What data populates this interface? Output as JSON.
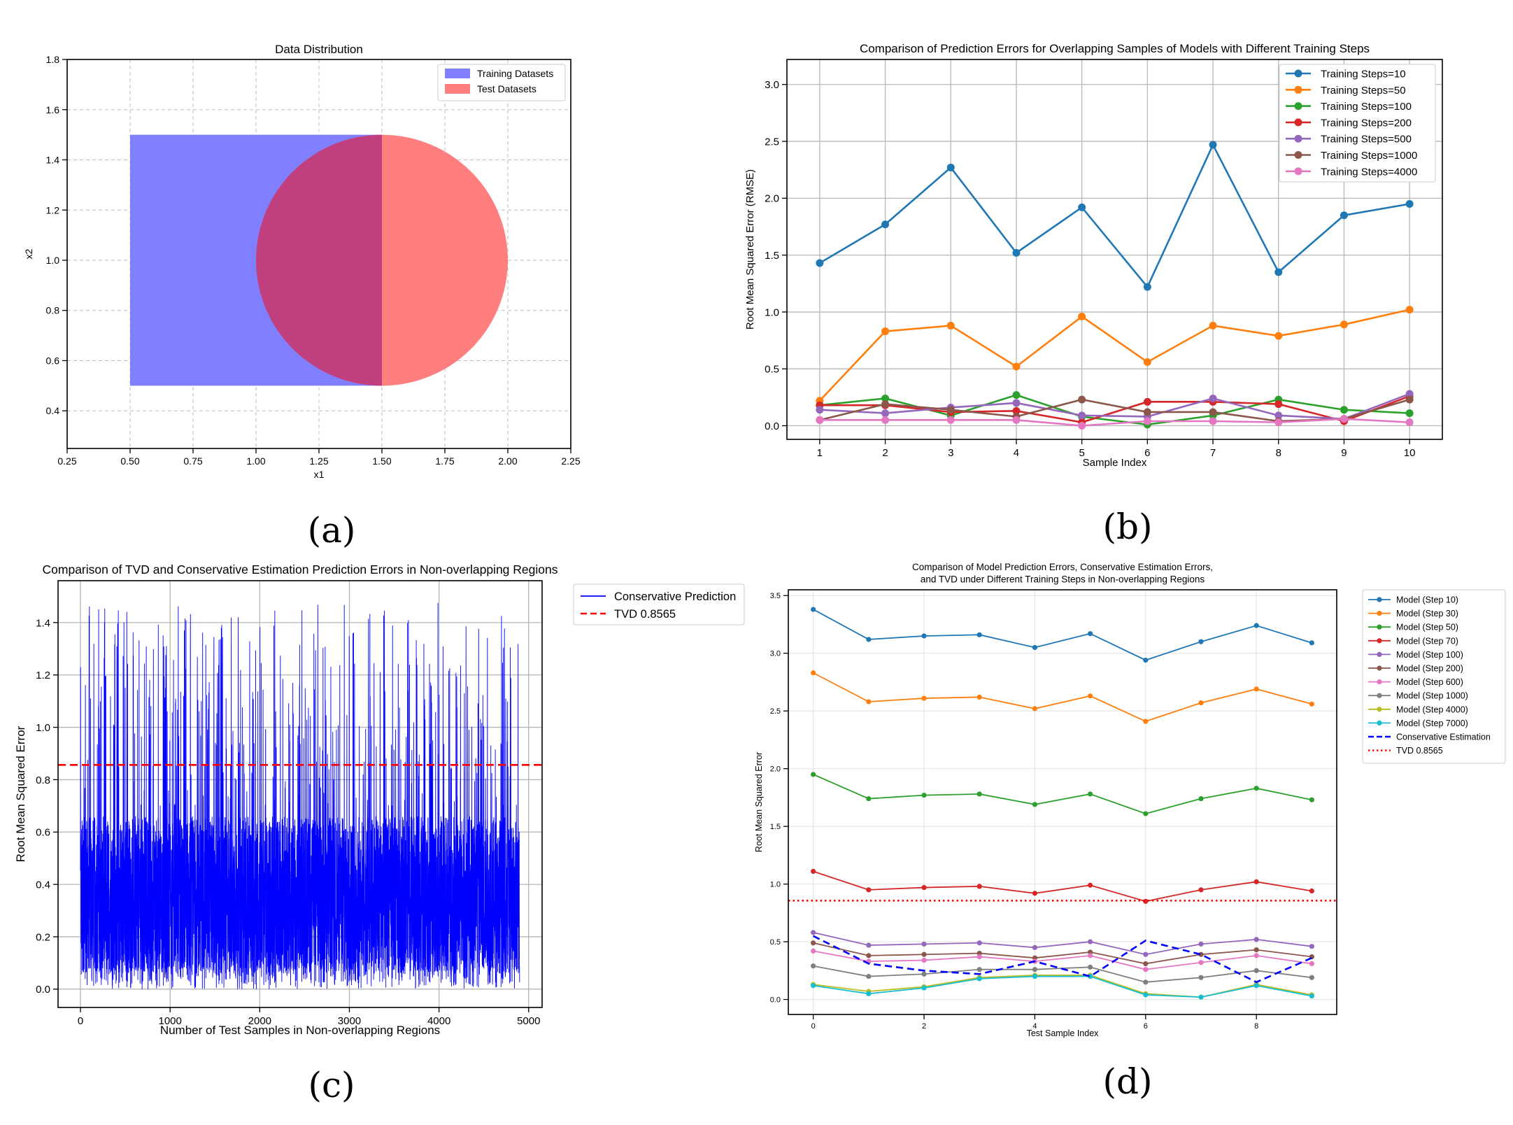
{
  "captions": [
    "(a)",
    "(b)",
    "(c)",
    "(d)"
  ],
  "chart_data": [
    {
      "id": "a",
      "type": "area",
      "title": "Data Distribution",
      "xlabel": "x1",
      "ylabel": "x2",
      "xlim": [
        0.25,
        2.25
      ],
      "ylim": [
        0.25,
        1.8
      ],
      "xticks": [
        0.25,
        0.5,
        0.75,
        1.0,
        1.25,
        1.5,
        1.75,
        2.0,
        2.25
      ],
      "yticks": [
        0.4,
        0.6,
        0.8,
        1.0,
        1.2,
        1.4,
        1.6,
        1.8
      ],
      "grid": true,
      "legend_position": "top-right",
      "series": [
        {
          "name": "Training Datasets",
          "shape": "rectangle",
          "x": [
            0.5,
            1.5
          ],
          "y": [
            0.5,
            1.5
          ],
          "color": "#7f7fff"
        },
        {
          "name": "Test Datasets",
          "shape": "circle",
          "center": [
            1.5,
            1.0
          ],
          "radius": 0.5,
          "color": "#ff7f7f"
        }
      ],
      "overlap_color": "#bf3f7f"
    },
    {
      "id": "b",
      "type": "line",
      "title": "Comparison of Prediction Errors for Overlapping Samples of Models with Different Training Steps",
      "xlabel": "Sample Index",
      "ylabel": "Root Mean Squared Error (RMSE)",
      "xlim": [
        0.5,
        10.5
      ],
      "ylim": [
        -0.12,
        3.22
      ],
      "xticks": [
        1,
        2,
        3,
        4,
        5,
        6,
        7,
        8,
        9,
        10
      ],
      "yticks": [
        0.0,
        0.5,
        1.0,
        1.5,
        2.0,
        2.5,
        3.0
      ],
      "grid": true,
      "legend_position": "top-right",
      "x": [
        1,
        2,
        3,
        4,
        5,
        6,
        7,
        8,
        9,
        10
      ],
      "series": [
        {
          "name": "Training Steps=10",
          "color": "#1f77b4",
          "values": [
            1.43,
            1.77,
            2.27,
            1.52,
            1.92,
            1.22,
            2.47,
            1.35,
            1.85,
            1.95
          ]
        },
        {
          "name": "Training Steps=50",
          "color": "#ff7f0e",
          "values": [
            0.22,
            0.83,
            0.88,
            0.52,
            0.96,
            0.56,
            0.88,
            0.79,
            0.89,
            1.02
          ]
        },
        {
          "name": "Training Steps=100",
          "color": "#2ca02c",
          "values": [
            0.18,
            0.24,
            0.09,
            0.27,
            0.08,
            0.01,
            0.09,
            0.23,
            0.14,
            0.11
          ]
        },
        {
          "name": "Training Steps=200",
          "color": "#d62728",
          "values": [
            0.18,
            0.18,
            0.12,
            0.13,
            0.03,
            0.21,
            0.21,
            0.19,
            0.04,
            0.26
          ]
        },
        {
          "name": "Training Steps=500",
          "color": "#9467bd",
          "values": [
            0.14,
            0.11,
            0.16,
            0.2,
            0.09,
            0.08,
            0.24,
            0.09,
            0.06,
            0.28
          ]
        },
        {
          "name": "Training Steps=1000",
          "color": "#8c564b",
          "values": [
            0.05,
            0.19,
            0.14,
            0.08,
            0.23,
            0.12,
            0.12,
            0.04,
            0.06,
            0.23
          ]
        },
        {
          "name": "Training Steps=4000",
          "color": "#e377c2",
          "values": [
            0.05,
            0.05,
            0.05,
            0.05,
            0.0,
            0.04,
            0.04,
            0.03,
            0.06,
            0.03
          ]
        }
      ]
    },
    {
      "id": "c",
      "type": "line",
      "title": "Comparison of TVD and Conservative Estimation Prediction Errors in Non-overlapping Regions",
      "xlabel": "Number of Test Samples in Non-overlapping Regions",
      "ylabel": "Root Mean Squared Error",
      "xlim": [
        -250,
        5150
      ],
      "ylim": [
        -0.07,
        1.56
      ],
      "xticks": [
        0,
        1000,
        2000,
        3000,
        4000,
        5000
      ],
      "yticks": [
        0.0,
        0.2,
        0.4,
        0.6,
        0.8,
        1.0,
        1.2,
        1.4
      ],
      "grid": true,
      "legend_position": "outside-right",
      "n_samples": 4900,
      "value_range": [
        0.0,
        1.48
      ],
      "series": [
        {
          "name": "Conservative Prediction",
          "color": "#0000ff",
          "style": "solid"
        }
      ],
      "reference_lines": [
        {
          "name": "TVD 0.8565",
          "value": 0.8565,
          "color": "#ff0000",
          "style": "dashed"
        }
      ]
    },
    {
      "id": "d",
      "type": "line",
      "title": "Comparison of Model Prediction Errors, Conservative Estimation Errors,",
      "subtitle": "and TVD under Different Training Steps in Non-overlapping Regions",
      "xlabel": "Test Sample Index",
      "ylabel": "Root Mean Squared Error",
      "xlim": [
        -0.45,
        9.45
      ],
      "ylim": [
        -0.13,
        3.55
      ],
      "xticks": [
        0,
        2,
        4,
        6,
        8
      ],
      "yticks": [
        0.0,
        0.5,
        1.0,
        1.5,
        2.0,
        2.5,
        3.0,
        3.5
      ],
      "grid": true,
      "legend_position": "outside-right",
      "x": [
        0,
        1,
        2,
        3,
        4,
        5,
        6,
        7,
        8,
        9
      ],
      "series": [
        {
          "name": "Model (Step 10)",
          "color": "#1f77b4",
          "values": [
            3.38,
            3.12,
            3.15,
            3.16,
            3.05,
            3.17,
            2.94,
            3.1,
            3.24,
            3.09
          ]
        },
        {
          "name": "Model (Step 30)",
          "color": "#ff7f0e",
          "values": [
            2.83,
            2.58,
            2.61,
            2.62,
            2.52,
            2.63,
            2.41,
            2.57,
            2.69,
            2.56
          ]
        },
        {
          "name": "Model (Step 50)",
          "color": "#2ca02c",
          "values": [
            1.95,
            1.74,
            1.77,
            1.78,
            1.69,
            1.78,
            1.61,
            1.74,
            1.83,
            1.73
          ]
        },
        {
          "name": "Model (Step 70)",
          "color": "#d62728",
          "values": [
            1.11,
            0.95,
            0.97,
            0.98,
            0.92,
            0.99,
            0.85,
            0.95,
            1.02,
            0.94
          ]
        },
        {
          "name": "Model (Step 100)",
          "color": "#9467bd",
          "values": [
            0.58,
            0.47,
            0.48,
            0.49,
            0.45,
            0.5,
            0.39,
            0.48,
            0.52,
            0.46
          ]
        },
        {
          "name": "Model (Step 200)",
          "color": "#8c564b",
          "values": [
            0.49,
            0.38,
            0.39,
            0.4,
            0.36,
            0.41,
            0.31,
            0.39,
            0.43,
            0.37
          ]
        },
        {
          "name": "Model (Step 600)",
          "color": "#e377c2",
          "values": [
            0.42,
            0.33,
            0.34,
            0.37,
            0.33,
            0.38,
            0.26,
            0.32,
            0.38,
            0.31
          ]
        },
        {
          "name": "Model (Step 1000)",
          "color": "#7f7f7f",
          "values": [
            0.29,
            0.2,
            0.22,
            0.26,
            0.26,
            0.28,
            0.15,
            0.19,
            0.25,
            0.19
          ]
        },
        {
          "name": "Model (Step 4000)",
          "color": "#bcbd22",
          "values": [
            0.13,
            0.07,
            0.11,
            0.19,
            0.21,
            0.21,
            0.05,
            0.02,
            0.13,
            0.04
          ]
        },
        {
          "name": "Model (Step 7000)",
          "color": "#17becf",
          "values": [
            0.12,
            0.05,
            0.1,
            0.18,
            0.2,
            0.2,
            0.04,
            0.02,
            0.12,
            0.03
          ]
        },
        {
          "name": "Conservative Estimation",
          "color": "#0000ff",
          "style": "dashed",
          "values": [
            0.55,
            0.31,
            0.25,
            0.22,
            0.33,
            0.2,
            0.51,
            0.39,
            0.15,
            0.36
          ]
        }
      ],
      "reference_lines": [
        {
          "name": "TVD 0.8565",
          "value": 0.8565,
          "color": "#ff0000",
          "style": "dotted"
        }
      ]
    }
  ]
}
